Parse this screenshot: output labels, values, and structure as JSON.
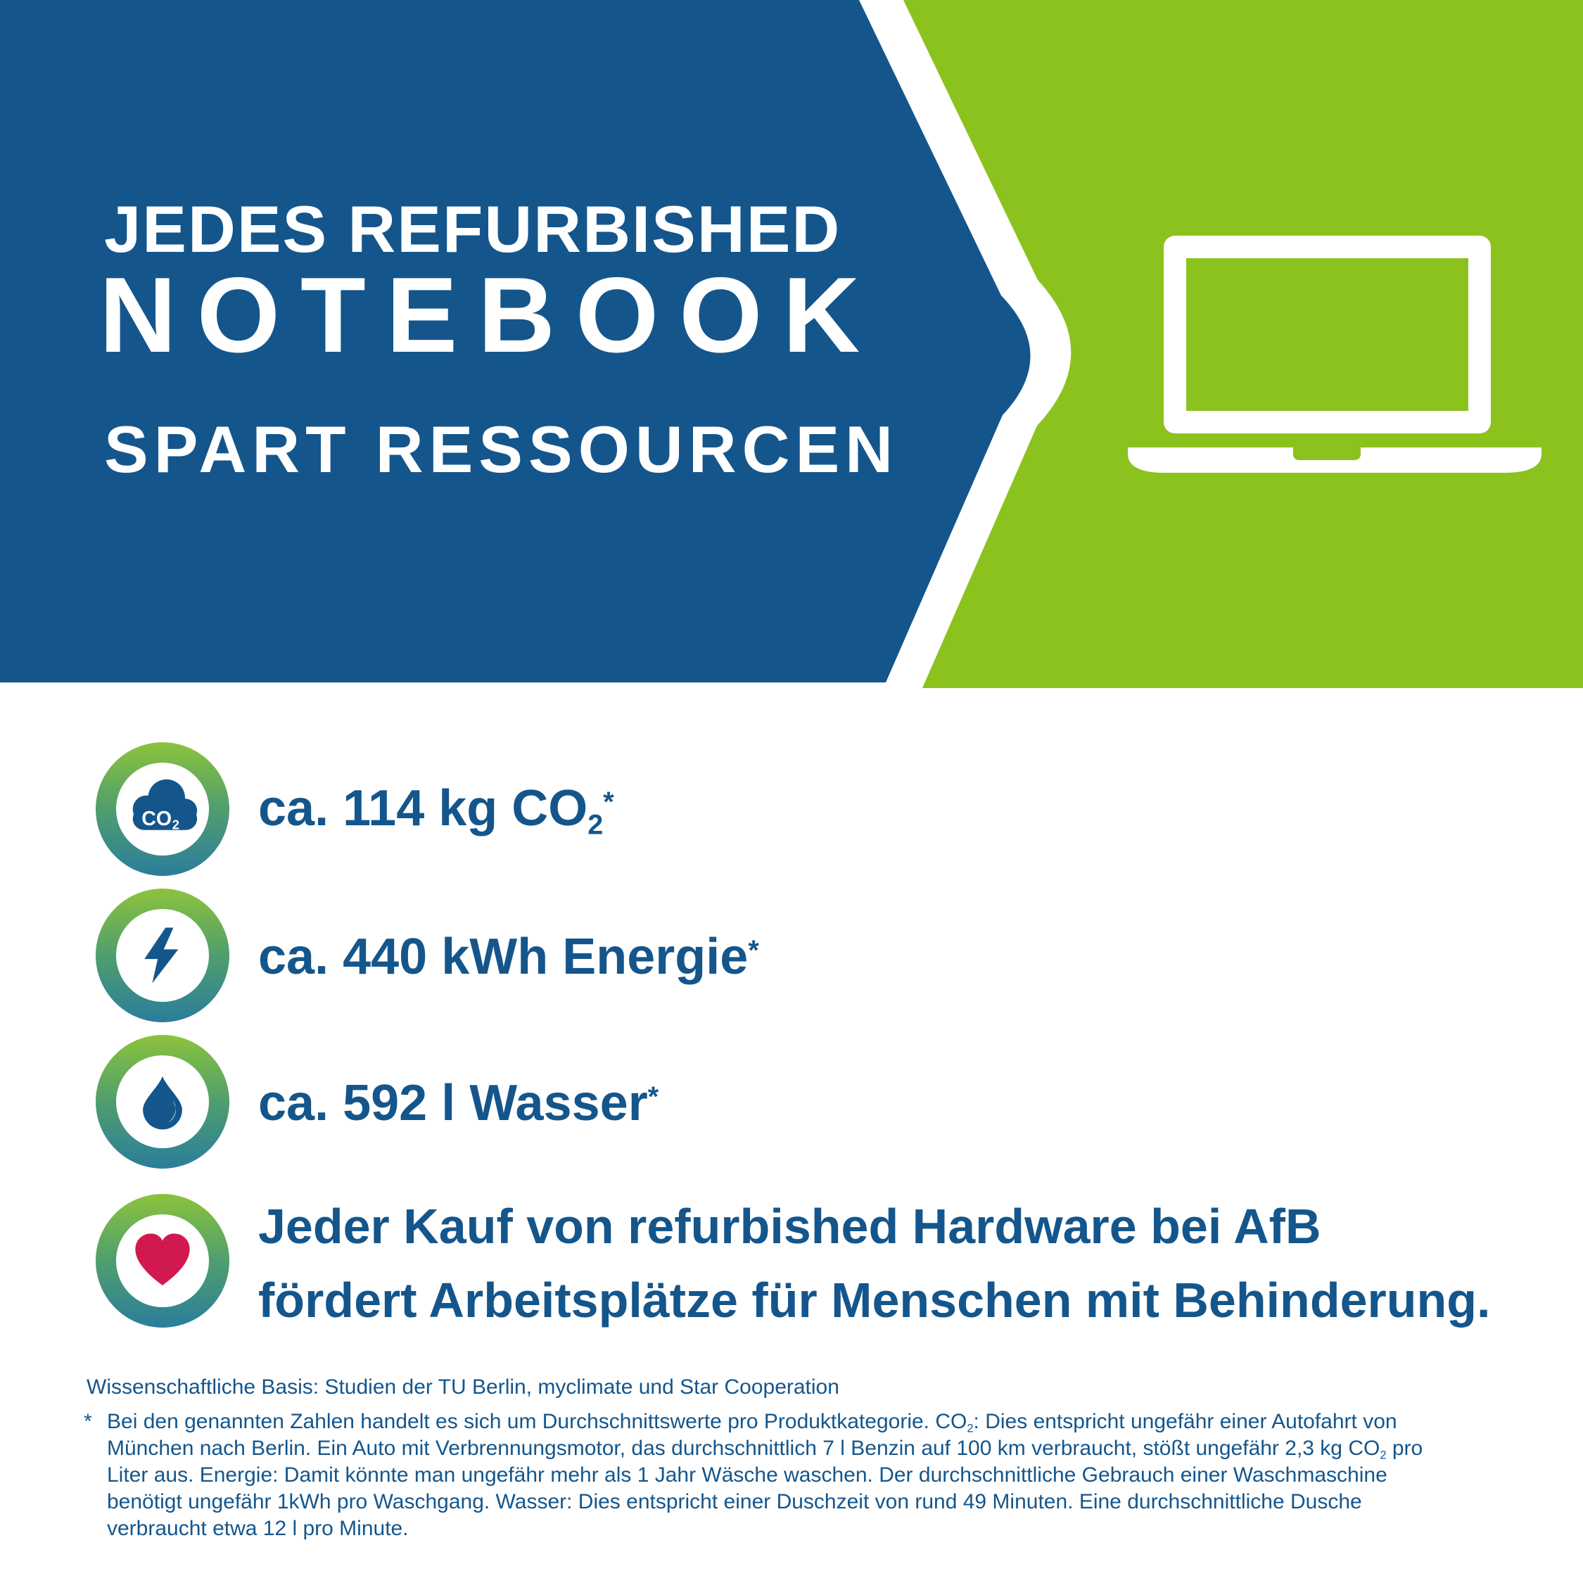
{
  "colors": {
    "blue": "#14568c",
    "green": "#8cc21e",
    "heart": "#d2194f",
    "ring_top": "#8cc33c",
    "ring_mid": "#4f9e6e",
    "ring_bottom": "#2b7d9c",
    "white": "#ffffff"
  },
  "banner": {
    "headline_line1": "JEDES REFURBISHED",
    "headline_line2": "NOTEBOOK",
    "headline_line3": "SPART RESSOURCEN",
    "laptop_icon": "laptop-icon"
  },
  "rows": [
    {
      "icon": "co2-cloud-icon",
      "icon_label": "CO",
      "icon_label_sub": "2",
      "segments": [
        {
          "t": "ca. 114 kg CO"
        },
        {
          "sub": "2"
        },
        {
          "sup": "*"
        }
      ]
    },
    {
      "icon": "lightning-icon",
      "segments": [
        {
          "t": "ca. 440 kWh Energie"
        },
        {
          "sup": "*"
        }
      ]
    },
    {
      "icon": "water-drop-icon",
      "segments": [
        {
          "t": "ca. 592 l Wasser"
        },
        {
          "sup": "*"
        }
      ]
    },
    {
      "icon": "heart-icon",
      "lines": [
        [
          {
            "t": "Jeder Kauf von refurbished Hardware bei AfB"
          }
        ],
        [
          {
            "t": "fördert Arbeitsplätze für Menschen mit Behinderung."
          }
        ]
      ]
    }
  ],
  "footnote": {
    "basis_line": "Wissenschaftliche Basis: Studien der TU Berlin, myclimate und Star Cooperation",
    "marker": "*",
    "lines": [
      [
        {
          "t": "Bei den genannten Zahlen handelt es sich um Durchschnittswerte pro Produktkategorie. CO"
        },
        {
          "sub": "2"
        },
        {
          "t": ": Dies entspricht ungefähr einer Autofahrt von"
        }
      ],
      [
        {
          "t": "München nach Berlin. Ein Auto mit Verbrennungsmotor, das durchschnittlich 7 l Benzin auf 100 km verbraucht, stößt ungefähr 2,3 kg CO"
        },
        {
          "sub": "2"
        },
        {
          "t": " pro"
        }
      ],
      [
        {
          "t": "Liter aus. Energie: Damit könnte man ungefähr mehr als 1 Jahr Wäsche waschen. Der durchschnittliche Gebrauch einer Waschmaschine"
        }
      ],
      [
        {
          "t": "benötigt ungefähr 1kWh pro Waschgang. Wasser: Dies entspricht einer Duschzeit von rund 49 Minuten. Eine durchschnittliche Dusche"
        }
      ],
      [
        {
          "t": "verbraucht etwa 12 l pro Minute."
        }
      ]
    ]
  }
}
